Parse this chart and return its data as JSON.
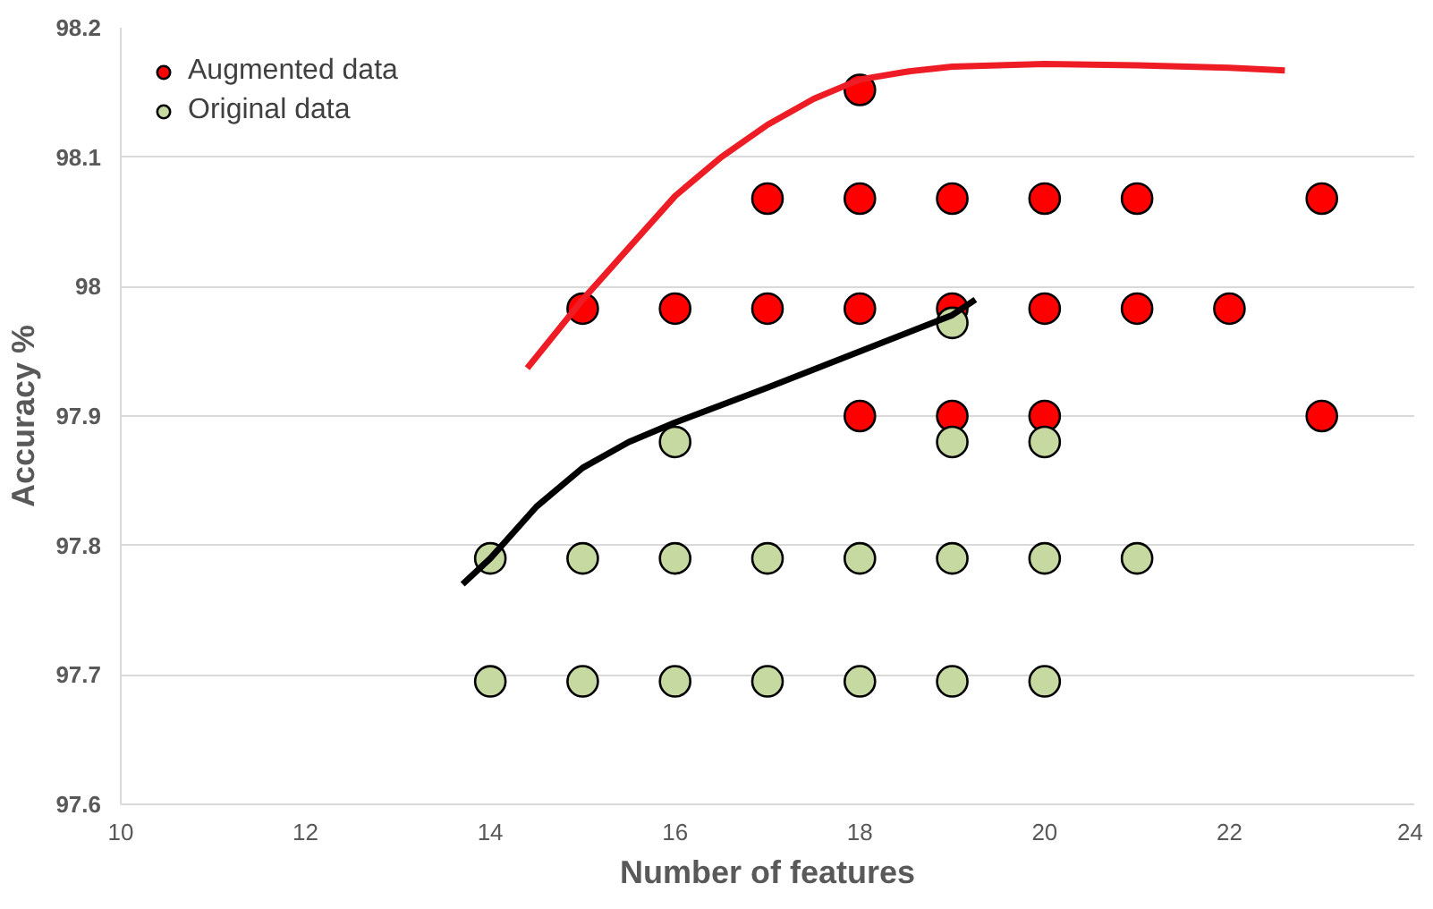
{
  "chart_data": {
    "type": "scatter",
    "xlabel": "Number of features",
    "ylabel": "Accuracy %",
    "xlim": [
      10,
      24
    ],
    "xticks": [
      10,
      12,
      14,
      16,
      18,
      20,
      22,
      24
    ],
    "ylim": [
      97.6,
      98.2
    ],
    "yticks": [
      97.6,
      97.7,
      97.8,
      97.9,
      98,
      98.1,
      98.2
    ],
    "grid": "y",
    "legend": "top left",
    "series": [
      {
        "name": "Augmented data",
        "color": "#ff0000",
        "marker": "circle",
        "x": [
          15,
          16,
          17,
          17,
          18,
          18,
          18,
          18,
          19,
          19,
          19,
          20,
          20,
          20,
          21,
          21,
          22,
          23,
          23
        ],
        "values": [
          97.983,
          97.983,
          98.068,
          97.983,
          98.152,
          98.068,
          97.983,
          97.9,
          98.068,
          97.983,
          97.9,
          98.068,
          97.983,
          97.9,
          98.068,
          97.983,
          97.983,
          98.068,
          97.9
        ]
      },
      {
        "name": "Original data",
        "color": "#c5d9a0",
        "marker": "circle",
        "x": [
          14,
          14,
          15,
          15,
          16,
          16,
          16,
          17,
          17,
          18,
          18,
          19,
          19,
          19,
          19,
          20,
          20,
          20,
          21
        ],
        "values": [
          97.79,
          97.695,
          97.79,
          97.695,
          97.88,
          97.79,
          97.695,
          97.79,
          97.695,
          97.79,
          97.695,
          97.972,
          97.88,
          97.79,
          97.695,
          97.88,
          97.79,
          97.695,
          97.79
        ]
      },
      {
        "type": "line",
        "color": "#ee1c24",
        "x": [
          14.4,
          15,
          15.5,
          16,
          16.5,
          17,
          17.5,
          18,
          18.5,
          19,
          20,
          21,
          22,
          22.6
        ],
        "values": [
          97.937,
          97.99,
          98.03,
          98.07,
          98.1,
          98.125,
          98.145,
          98.16,
          98.166,
          98.17,
          98.172,
          98.171,
          98.169,
          98.167
        ]
      },
      {
        "type": "line",
        "color": "#000000",
        "x": [
          13.7,
          14,
          14.5,
          15,
          15.5,
          16,
          17,
          18,
          19,
          19.25
        ],
        "values": [
          97.77,
          97.79,
          97.83,
          97.86,
          97.88,
          97.895,
          97.922,
          97.95,
          97.978,
          97.99
        ]
      }
    ]
  }
}
